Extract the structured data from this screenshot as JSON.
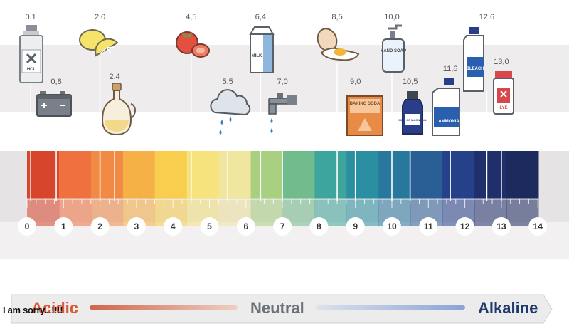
{
  "scale": {
    "ticks": [
      "0",
      "1",
      "2",
      "3",
      "4",
      "5",
      "6",
      "7",
      "8",
      "9",
      "10",
      "11",
      "12",
      "13",
      "14"
    ],
    "colors": [
      "#d7462c",
      "#f07140",
      "#f08a45",
      "#f5b046",
      "#f7ce4e",
      "#f6e37d",
      "#f0e6a0",
      "#a8d080",
      "#72bb8c",
      "#3ea59c",
      "#2a8fa0",
      "#28779c",
      "#2a5f96",
      "#24418a",
      "#1f2f6c",
      "#1c2a5e"
    ]
  },
  "substances": [
    {
      "value": "0,1",
      "ph": 0.1,
      "icon": "hcl-bottle-icon",
      "label": "HCL"
    },
    {
      "value": "0,8",
      "ph": 0.8,
      "icon": "car-battery-icon"
    },
    {
      "value": "2,0",
      "ph": 2.0,
      "icon": "lemon-icon"
    },
    {
      "value": "2,4",
      "ph": 2.4,
      "icon": "vinegar-bottle-icon"
    },
    {
      "value": "4,5",
      "ph": 4.5,
      "icon": "tomato-icon"
    },
    {
      "value": "5,5",
      "ph": 5.5,
      "icon": "rain-cloud-icon"
    },
    {
      "value": "6,4",
      "ph": 6.4,
      "icon": "milk-carton-icon",
      "label": "MILK"
    },
    {
      "value": "7,0",
      "ph": 7.0,
      "icon": "water-tap-icon"
    },
    {
      "value": "8,5",
      "ph": 8.5,
      "icon": "egg-icon"
    },
    {
      "value": "9,0",
      "ph": 9.0,
      "icon": "baking-soda-icon",
      "label": "BAKING SODA"
    },
    {
      "value": "10,0",
      "ph": 10.0,
      "icon": "hand-soap-icon",
      "label": "HAND SOAP"
    },
    {
      "value": "10,5",
      "ph": 10.5,
      "icon": "milk-of-magnesia-icon",
      "label": "MILK OF MAGNESIA"
    },
    {
      "value": "11,6",
      "ph": 11.6,
      "icon": "ammonia-bottle-icon",
      "label": "AMMONIA"
    },
    {
      "value": "12,6",
      "ph": 12.6,
      "icon": "bleach-bottle-icon",
      "label": "BLEACH"
    },
    {
      "value": "13,0",
      "ph": 13.0,
      "icon": "lye-container-icon",
      "label": "LYE"
    }
  ],
  "legend": {
    "acidic": "Acidic",
    "neutral": "Neutral",
    "alkaline": "Alkaline"
  },
  "overlay_text": "I am sorry...!!!!"
}
